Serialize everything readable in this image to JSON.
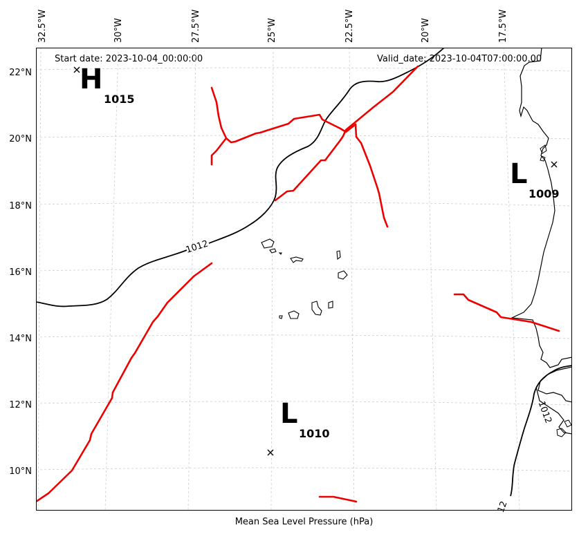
{
  "header": {
    "start_date": "Start date: 2023-10-04_00:00:00",
    "valid_date": "Valid_date: 2023-10-04T07:00:00.00"
  },
  "caption": "Mean Sea Level Pressure (hPa)",
  "axes": {
    "longitude_labels": [
      "32.5°W",
      "30°W",
      "27.5°W",
      "25°W",
      "22.5°W",
      "20°W",
      "17.5°W"
    ],
    "latitude_labels": [
      "22°N",
      "20°N",
      "18°N",
      "16°N",
      "14°N",
      "12°N",
      "10°N"
    ],
    "lon_range": [
      -33.0,
      -16.8
    ],
    "lat_range": [
      9.0,
      22.8
    ],
    "grid": "dashed"
  },
  "pressure_systems": [
    {
      "type": "H",
      "value": "1015"
    },
    {
      "type": "L",
      "value": "1009"
    },
    {
      "type": "L",
      "value": "1010"
    }
  ],
  "isobar_labels": [
    "1012",
    "1012",
    "12"
  ],
  "colors": {
    "isobar": "#000000",
    "trough": "#ee0000",
    "grid": "#cccccc",
    "coast": "#000000"
  }
}
